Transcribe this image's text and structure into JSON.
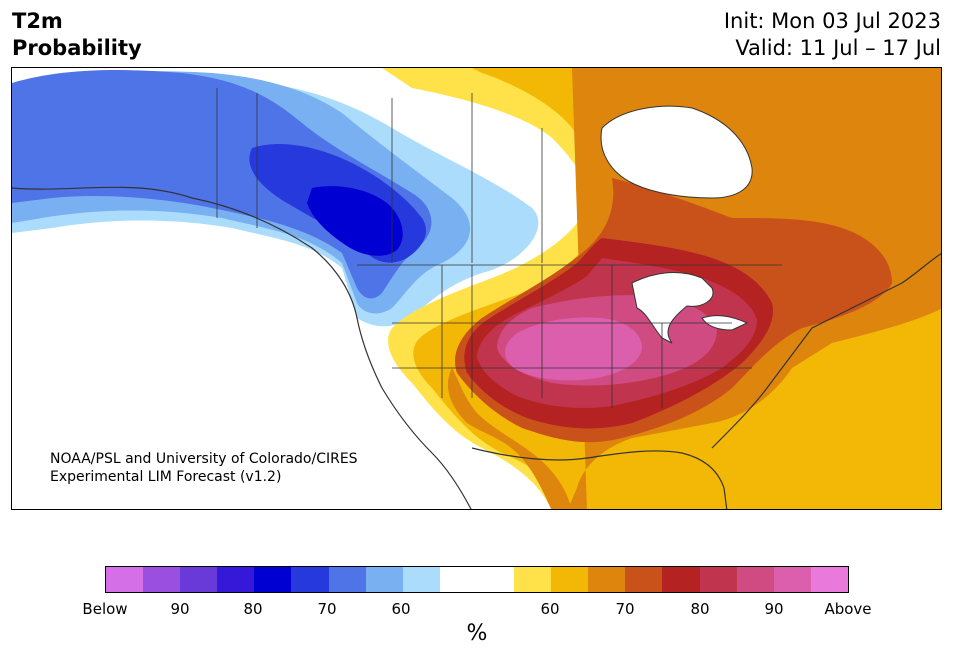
{
  "header": {
    "variable": "T2m",
    "product": "Probability",
    "init": "Init: Mon 03 Jul 2023",
    "valid": "Valid: 11 Jul – 17 Jul"
  },
  "map": {
    "credit_line1": "NOAA/PSL and University of Colorado/CIRES",
    "credit_line2": "Experimental LIM Forecast (v1.2)",
    "region": "North America"
  },
  "colorbar": {
    "colors": [
      "#d46fe8",
      "#9a4fe0",
      "#6a3ad8",
      "#3518d8",
      "#0000d2",
      "#2639dc",
      "#4f74e8",
      "#78b0f2",
      "#acdcfc",
      "#ffffff",
      "#ffffff",
      "#ffe24a",
      "#f3b805",
      "#dd850d",
      "#c9521a",
      "#b42222",
      "#c0344e",
      "#cf4b82",
      "#dc5fae",
      "#ea79dc"
    ],
    "tick_labels": [
      "Below",
      "90",
      "80",
      "70",
      "60",
      "60",
      "70",
      "80",
      "90",
      "Above"
    ],
    "unit": "%"
  }
}
